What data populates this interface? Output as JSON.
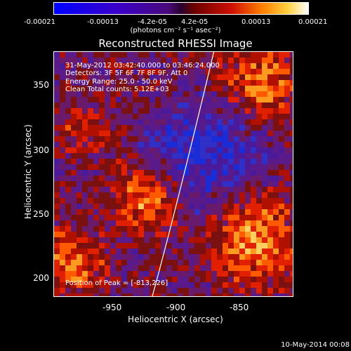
{
  "colorbar": {
    "ticks": [
      "-0.00021",
      "-0.00013",
      "-4.2e-05",
      "4.2e-05",
      "0.00013",
      "0.00021"
    ],
    "units": "(photons cm⁻² s⁻¹ asec⁻²)"
  },
  "title": "Reconstructed RHESSI Image",
  "info": {
    "time": "31-May-2012 03:42:40.000 to 03:46:24.000",
    "detectors": "Detectors: 3F 5F 6F 7F 8F 9F, Att 0",
    "energy": "Energy Range: 25.0 - 50.0 keV",
    "clean": "Clean     Total counts: 5.12E+03",
    "peak": "Position of Peak = [-813,226]"
  },
  "axes": {
    "xlabel": "Heliocentric X (arcsec)",
    "ylabel": "Heliocentric Y (arcsec)",
    "xticks": [
      "-950",
      "-900",
      "-850"
    ],
    "yticks": [
      "350",
      "300",
      "250",
      "200"
    ]
  },
  "footer_date": "10-May-2014 00:08",
  "colors": {
    "background": "#000000",
    "limb_line": "#ffffff"
  }
}
